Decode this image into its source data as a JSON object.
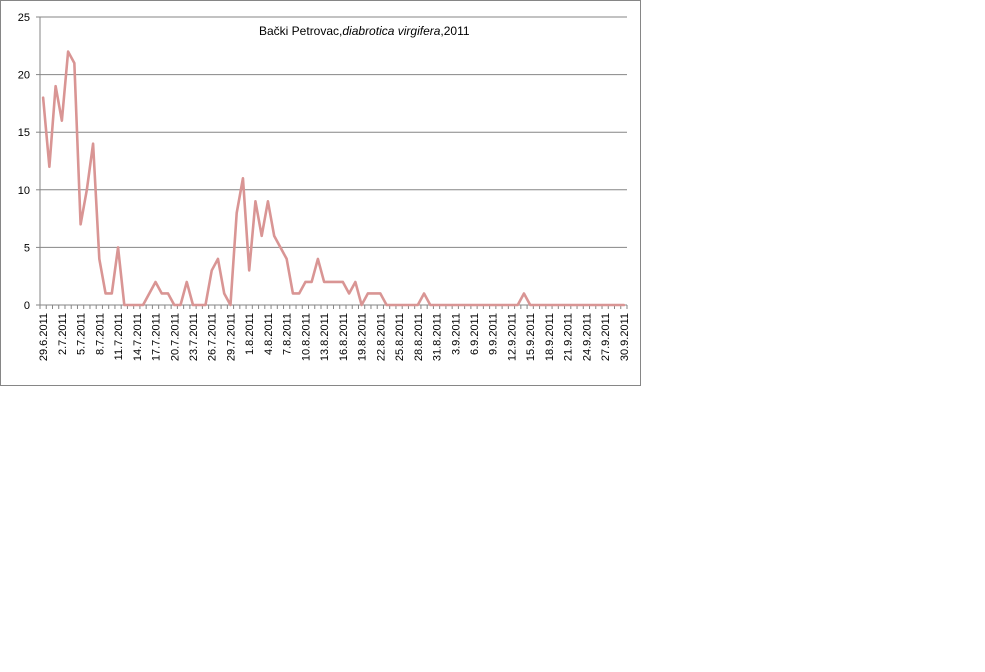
{
  "chart_data": {
    "type": "line",
    "title_prefix": "Bački Petrovac,",
    "title_italic": "diabrotica virgifera",
    "title_suffix": ",2011",
    "xlabel": "",
    "ylabel": "",
    "ylim": [
      0,
      25
    ],
    "yticks": [
      0,
      5,
      10,
      15,
      20,
      25
    ],
    "grid": true,
    "legend": "none",
    "line_color": "#d99594",
    "x_start": "29.6.2011",
    "x_end": "30.9.2011",
    "x_tick_labels": [
      "29.6.2011",
      "2.7.2011",
      "5.7.2011",
      "8.7.2011",
      "11.7.2011",
      "14.7.2011",
      "17.7.2011",
      "20.7.2011",
      "23.7.2011",
      "26.7.2011",
      "29.7.2011",
      "1.8.2011",
      "4.8.2011",
      "7.8.2011",
      "10.8.2011",
      "13.8.2011",
      "16.8.2011",
      "19.8.2011",
      "22.8.2011",
      "25.8.2011",
      "28.8.2011",
      "31.8.2011",
      "3.9.2011",
      "6.9.2011",
      "9.9.2011",
      "12.9.2011",
      "15.9.2011",
      "18.9.2011",
      "21.9.2011",
      "24.9.2011",
      "27.9.2011",
      "30.9.2011"
    ],
    "series": [
      {
        "values": [
          18,
          12,
          19,
          16,
          22,
          21,
          7,
          10,
          14,
          4,
          1,
          1,
          5,
          0,
          0,
          0,
          0,
          1,
          2,
          1,
          1,
          0,
          0,
          2,
          0,
          0,
          0,
          3,
          4,
          1,
          0,
          8,
          11,
          3,
          9,
          6,
          9,
          6,
          5,
          4,
          1,
          1,
          2,
          2,
          4,
          2,
          2,
          2,
          2,
          1,
          2,
          0,
          1,
          1,
          1,
          0,
          0,
          0,
          0,
          0,
          0,
          1,
          0,
          0,
          0,
          0,
          0,
          0,
          0,
          0,
          0,
          0,
          0,
          0,
          0,
          0,
          0,
          1,
          0,
          0,
          0,
          0,
          0,
          0,
          0,
          0,
          0,
          0,
          0,
          0,
          0,
          0,
          0,
          0
        ]
      }
    ]
  }
}
